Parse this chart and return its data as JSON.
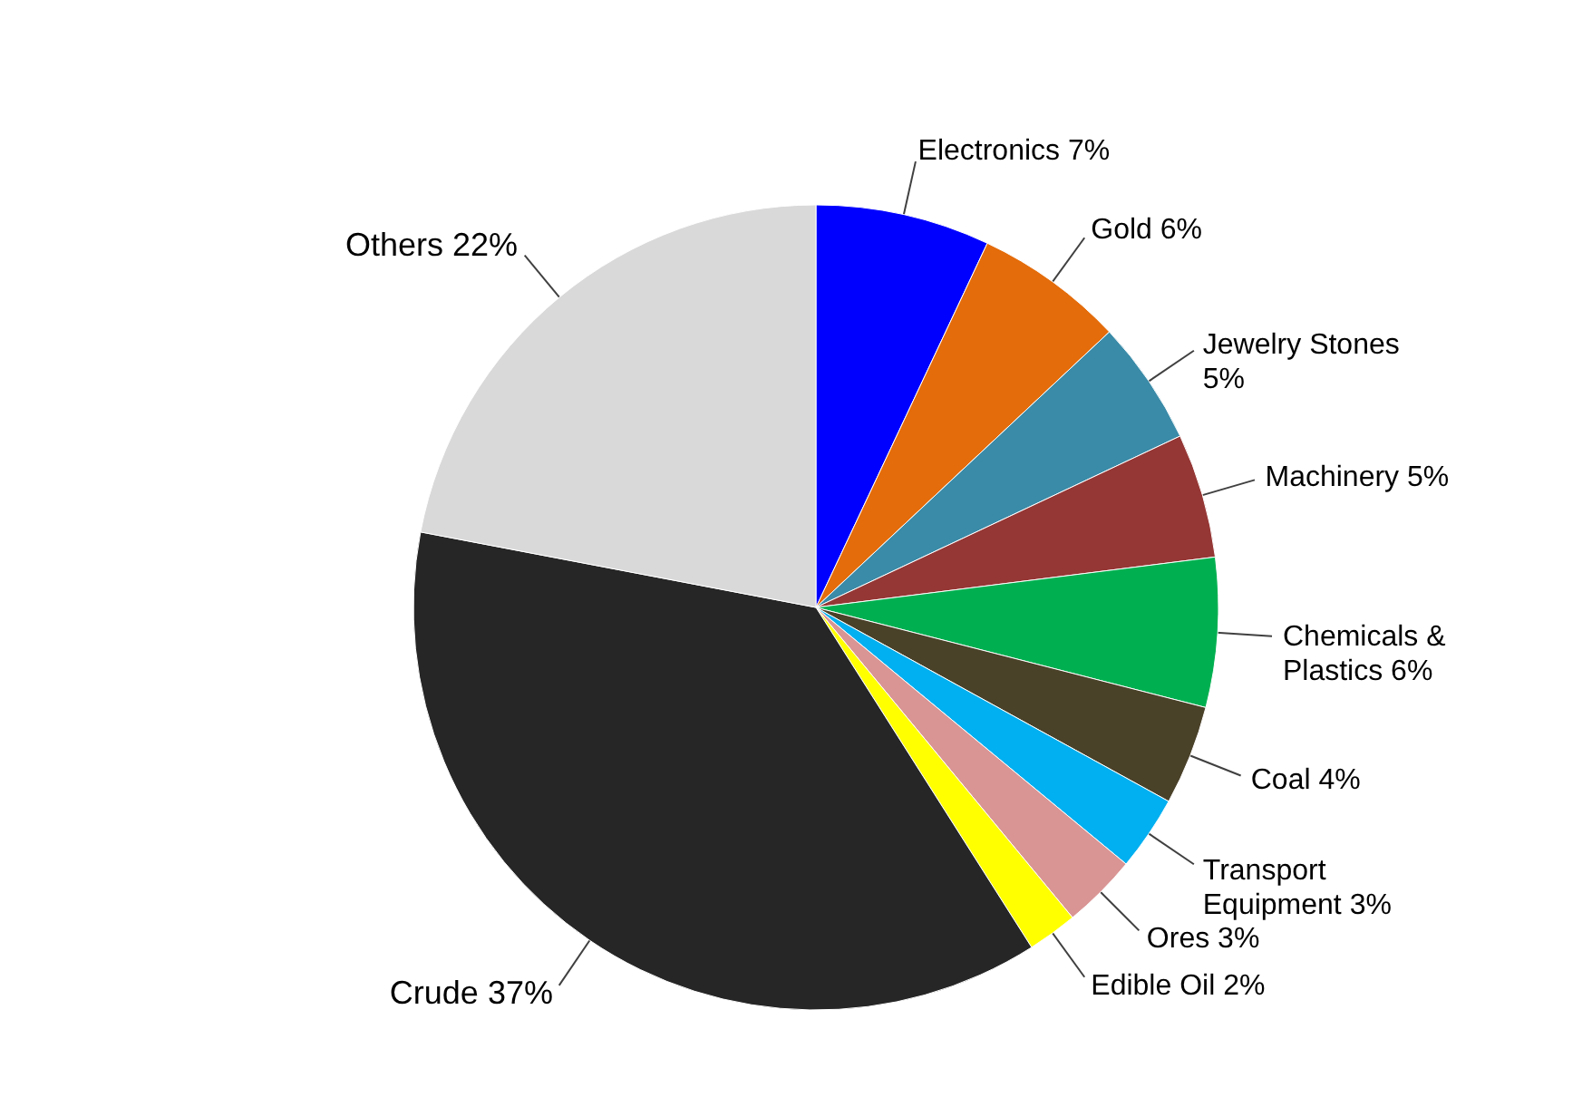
{
  "chart_data": {
    "type": "pie",
    "categories": [
      "Electronics",
      "Gold",
      "Jewelry Stones",
      "Machinery",
      "Chemicals & Plastics",
      "Coal",
      "Transport Equipment",
      "Ores",
      "Edible Oil",
      "Crude",
      "Others"
    ],
    "values": [
      7,
      6,
      5,
      5,
      6,
      4,
      3,
      3,
      2,
      37,
      22
    ],
    "value_labels": [
      "7%",
      "6%",
      "5%",
      "5%",
      "6%",
      "4%",
      "3%",
      "3%",
      "2%",
      "37%",
      "22%"
    ],
    "colors": [
      "#0000ff",
      "#e46c0a",
      "#3a8ba8",
      "#953735",
      "#00b050",
      "#4a4129",
      "#00b0f0",
      "#d99594",
      "#ffff00",
      "#262626",
      "#d9d9d9"
    ]
  }
}
